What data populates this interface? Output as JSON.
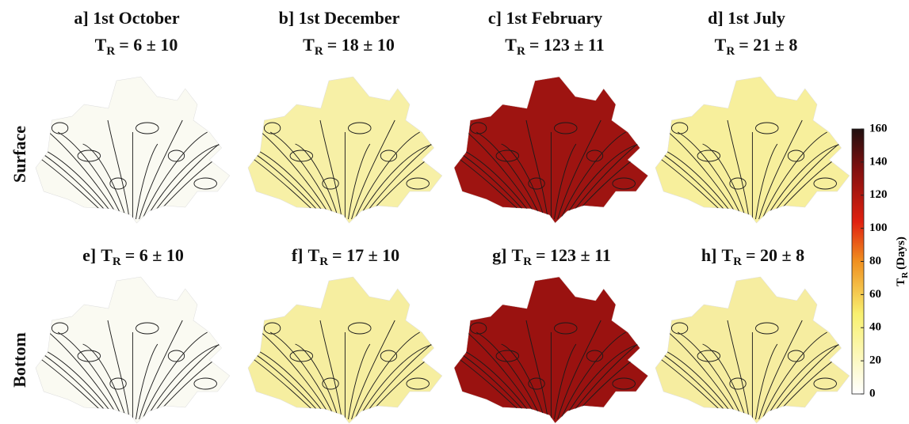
{
  "tr_symbol": "T",
  "tr_subscript": "R",
  "rows": [
    "Surface",
    "Bottom"
  ],
  "panels": [
    {
      "heading": "a] 1st October",
      "tr": "= 6 ± 10",
      "color": "#fafaf2"
    },
    {
      "heading": "b] 1st December",
      "tr": "= 18 ± 10",
      "color": "#f7f0a6"
    },
    {
      "heading": "c] 1st February",
      "tr": "= 123 ± 11",
      "color": "#9e1411"
    },
    {
      "heading": "d] 1st July",
      "tr": "= 21 ± 8",
      "color": "#f7ef9c"
    },
    {
      "heading": "e]",
      "tr": "= 6 ± 10",
      "color": "#fafaf2"
    },
    {
      "heading": "f]",
      "tr": "= 17 ± 10",
      "color": "#f6eea0"
    },
    {
      "heading": "g]",
      "tr": "= 123 ± 11",
      "color": "#9a1210"
    },
    {
      "heading": "h]",
      "tr": "= 20 ± 8",
      "color": "#f6eda0"
    }
  ],
  "colorbar": {
    "lim": [
      0,
      160
    ],
    "ticks": [
      0,
      20,
      40,
      60,
      80,
      100,
      120,
      140,
      160
    ],
    "unit": "(Days)"
  }
}
